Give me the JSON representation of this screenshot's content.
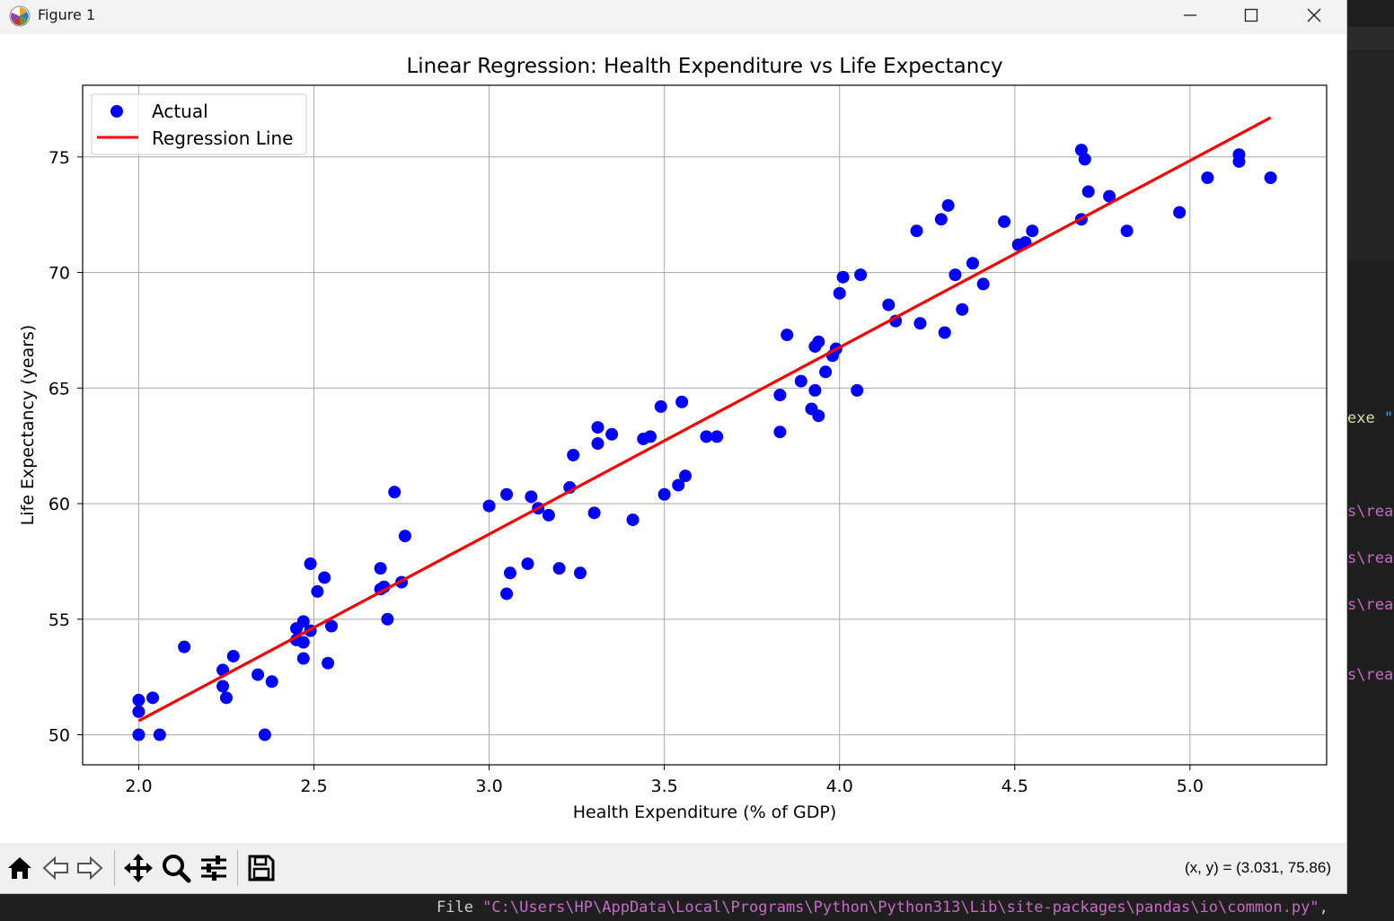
{
  "window": {
    "title": "Figure 1"
  },
  "toolbar": {
    "home": "home-icon",
    "back": "back-arrow-icon",
    "forward": "forward-arrow-icon",
    "pan": "pan-icon",
    "zoom": "zoom-icon",
    "configure": "sliders-icon",
    "save": "save-icon",
    "coords": "(x, y) = (3.031, 75.86)"
  },
  "terminal": {
    "exe_fragment": "exe ",
    "quote_fragment": "\"",
    "path_fragment": "s\\rea",
    "bottom_prefix": "File ",
    "bottom_path": "\"C:\\Users\\HP\\AppData\\Local\\Programs\\Python\\Python313\\Lib\\site-packages\\pandas\\io\\common.py\"",
    "bottom_suffix": ","
  },
  "chart_data": {
    "type": "scatter",
    "title": "Linear Regression: Health Expenditure vs Life Expectancy",
    "xlabel": "Health Expenditure (% of GDP)",
    "ylabel": "Life Expectancy (years)",
    "xlim": [
      1.84,
      5.39
    ],
    "ylim": [
      48.7,
      78.1
    ],
    "xticks": [
      2.0,
      2.5,
      3.0,
      3.5,
      4.0,
      4.5,
      5.0
    ],
    "xtick_labels": [
      "2.0",
      "2.5",
      "3.0",
      "3.5",
      "4.0",
      "4.5",
      "5.0"
    ],
    "yticks": [
      50,
      55,
      60,
      65,
      70,
      75
    ],
    "ytick_labels": [
      "50",
      "55",
      "60",
      "65",
      "70",
      "75"
    ],
    "grid": true,
    "legend_position": "upper-left",
    "colors": {
      "scatter": "#0000ff",
      "line": "#ff0000"
    },
    "series": [
      {
        "name": "Actual",
        "kind": "scatter",
        "points": [
          [
            2.0,
            50.0
          ],
          [
            2.0,
            51.0
          ],
          [
            2.0,
            51.5
          ],
          [
            2.04,
            51.6
          ],
          [
            2.06,
            50.0
          ],
          [
            2.13,
            53.8
          ],
          [
            2.24,
            52.1
          ],
          [
            2.24,
            52.8
          ],
          [
            2.25,
            51.6
          ],
          [
            2.27,
            53.4
          ],
          [
            2.34,
            52.6
          ],
          [
            2.36,
            50.0
          ],
          [
            2.38,
            52.3
          ],
          [
            2.45,
            54.1
          ],
          [
            2.45,
            54.6
          ],
          [
            2.47,
            54.9
          ],
          [
            2.47,
            53.3
          ],
          [
            2.47,
            54.0
          ],
          [
            2.49,
            54.5
          ],
          [
            2.49,
            57.4
          ],
          [
            2.51,
            56.2
          ],
          [
            2.53,
            56.8
          ],
          [
            2.54,
            53.1
          ],
          [
            2.55,
            54.7
          ],
          [
            2.69,
            56.3
          ],
          [
            2.69,
            57.2
          ],
          [
            2.7,
            56.4
          ],
          [
            2.71,
            55.0
          ],
          [
            2.73,
            60.5
          ],
          [
            2.75,
            56.6
          ],
          [
            2.76,
            58.6
          ],
          [
            3.0,
            59.9
          ],
          [
            3.05,
            60.4
          ],
          [
            3.05,
            56.1
          ],
          [
            3.06,
            57.0
          ],
          [
            3.11,
            57.4
          ],
          [
            3.12,
            60.3
          ],
          [
            3.14,
            59.8
          ],
          [
            3.17,
            59.5
          ],
          [
            3.2,
            57.2
          ],
          [
            3.23,
            60.7
          ],
          [
            3.24,
            62.1
          ],
          [
            3.26,
            57.0
          ],
          [
            3.3,
            59.6
          ],
          [
            3.31,
            62.6
          ],
          [
            3.31,
            63.3
          ],
          [
            3.35,
            63.0
          ],
          [
            3.41,
            59.3
          ],
          [
            3.44,
            62.8
          ],
          [
            3.46,
            62.9
          ],
          [
            3.49,
            64.2
          ],
          [
            3.5,
            60.4
          ],
          [
            3.54,
            60.8
          ],
          [
            3.55,
            64.4
          ],
          [
            3.56,
            61.2
          ],
          [
            3.62,
            62.9
          ],
          [
            3.65,
            62.9
          ],
          [
            3.83,
            63.1
          ],
          [
            3.83,
            64.7
          ],
          [
            3.85,
            67.3
          ],
          [
            3.89,
            65.3
          ],
          [
            3.92,
            64.1
          ],
          [
            3.93,
            64.9
          ],
          [
            3.93,
            66.8
          ],
          [
            3.94,
            63.8
          ],
          [
            3.94,
            67.0
          ],
          [
            3.96,
            65.7
          ],
          [
            3.98,
            66.4
          ],
          [
            3.99,
            66.7
          ],
          [
            4.0,
            69.1
          ],
          [
            4.01,
            69.8
          ],
          [
            4.05,
            64.9
          ],
          [
            4.06,
            69.9
          ],
          [
            4.14,
            68.6
          ],
          [
            4.16,
            67.9
          ],
          [
            4.22,
            71.8
          ],
          [
            4.23,
            67.8
          ],
          [
            4.29,
            72.3
          ],
          [
            4.3,
            67.4
          ],
          [
            4.31,
            72.9
          ],
          [
            4.33,
            69.9
          ],
          [
            4.35,
            68.4
          ],
          [
            4.38,
            70.4
          ],
          [
            4.41,
            69.5
          ],
          [
            4.47,
            72.2
          ],
          [
            4.51,
            71.2
          ],
          [
            4.53,
            71.3
          ],
          [
            4.55,
            71.8
          ],
          [
            4.69,
            72.3
          ],
          [
            4.69,
            75.3
          ],
          [
            4.7,
            74.9
          ],
          [
            4.71,
            73.5
          ],
          [
            4.77,
            73.3
          ],
          [
            4.82,
            71.8
          ],
          [
            4.97,
            72.6
          ],
          [
            5.05,
            74.1
          ],
          [
            5.14,
            74.8
          ],
          [
            5.14,
            75.1
          ],
          [
            5.23,
            74.1
          ]
        ]
      },
      {
        "name": "Regression Line",
        "kind": "line",
        "points": [
          [
            2.0,
            50.6
          ],
          [
            5.23,
            76.7
          ]
        ]
      }
    ]
  }
}
